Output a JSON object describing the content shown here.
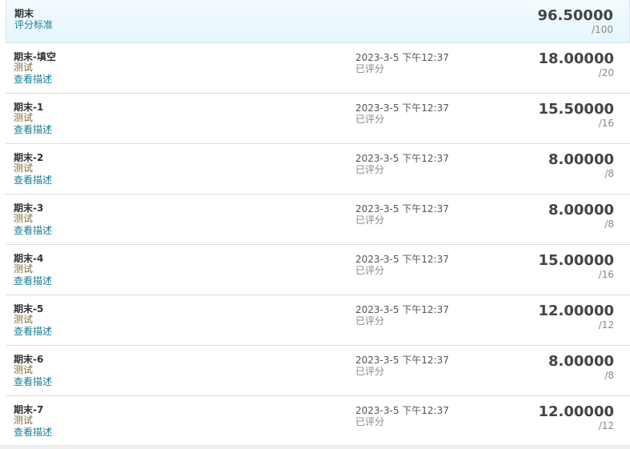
{
  "summary": {
    "title": "期末",
    "link": "评分标准",
    "score": "96.50000",
    "max": "/100"
  },
  "rows": [
    {
      "title": "期末-填空",
      "type": "测试",
      "link": "查看描述",
      "date": "2023-3-5 下午12:37",
      "status": "已评分",
      "score": "18.00000",
      "max": "/20"
    },
    {
      "title": "期末-1",
      "type": "测试",
      "link": "查看描述",
      "date": "2023-3-5 下午12:37",
      "status": "已评分",
      "score": "15.50000",
      "max": "/16"
    },
    {
      "title": "期末-2",
      "type": "测试",
      "link": "查看描述",
      "date": "2023-3-5 下午12:37",
      "status": "已评分",
      "score": "8.00000",
      "max": "/8"
    },
    {
      "title": "期末-3",
      "type": "测试",
      "link": "查看描述",
      "date": "2023-3-5 下午12:37",
      "status": "已评分",
      "score": "8.00000",
      "max": "/8"
    },
    {
      "title": "期末-4",
      "type": "测试",
      "link": "查看描述",
      "date": "2023-3-5 下午12:37",
      "status": "已评分",
      "score": "15.00000",
      "max": "/16"
    },
    {
      "title": "期末-5",
      "type": "测试",
      "link": "查看描述",
      "date": "2023-3-5 下午12:37",
      "status": "已评分",
      "score": "12.00000",
      "max": "/12"
    },
    {
      "title": "期末-6",
      "type": "测试",
      "link": "查看描述",
      "date": "2023-3-5 下午12:37",
      "status": "已评分",
      "score": "8.00000",
      "max": "/8"
    },
    {
      "title": "期末-7",
      "type": "测试",
      "link": "查看描述",
      "date": "2023-3-5 下午12:37",
      "status": "已评分",
      "score": "12.00000",
      "max": "/12"
    }
  ]
}
